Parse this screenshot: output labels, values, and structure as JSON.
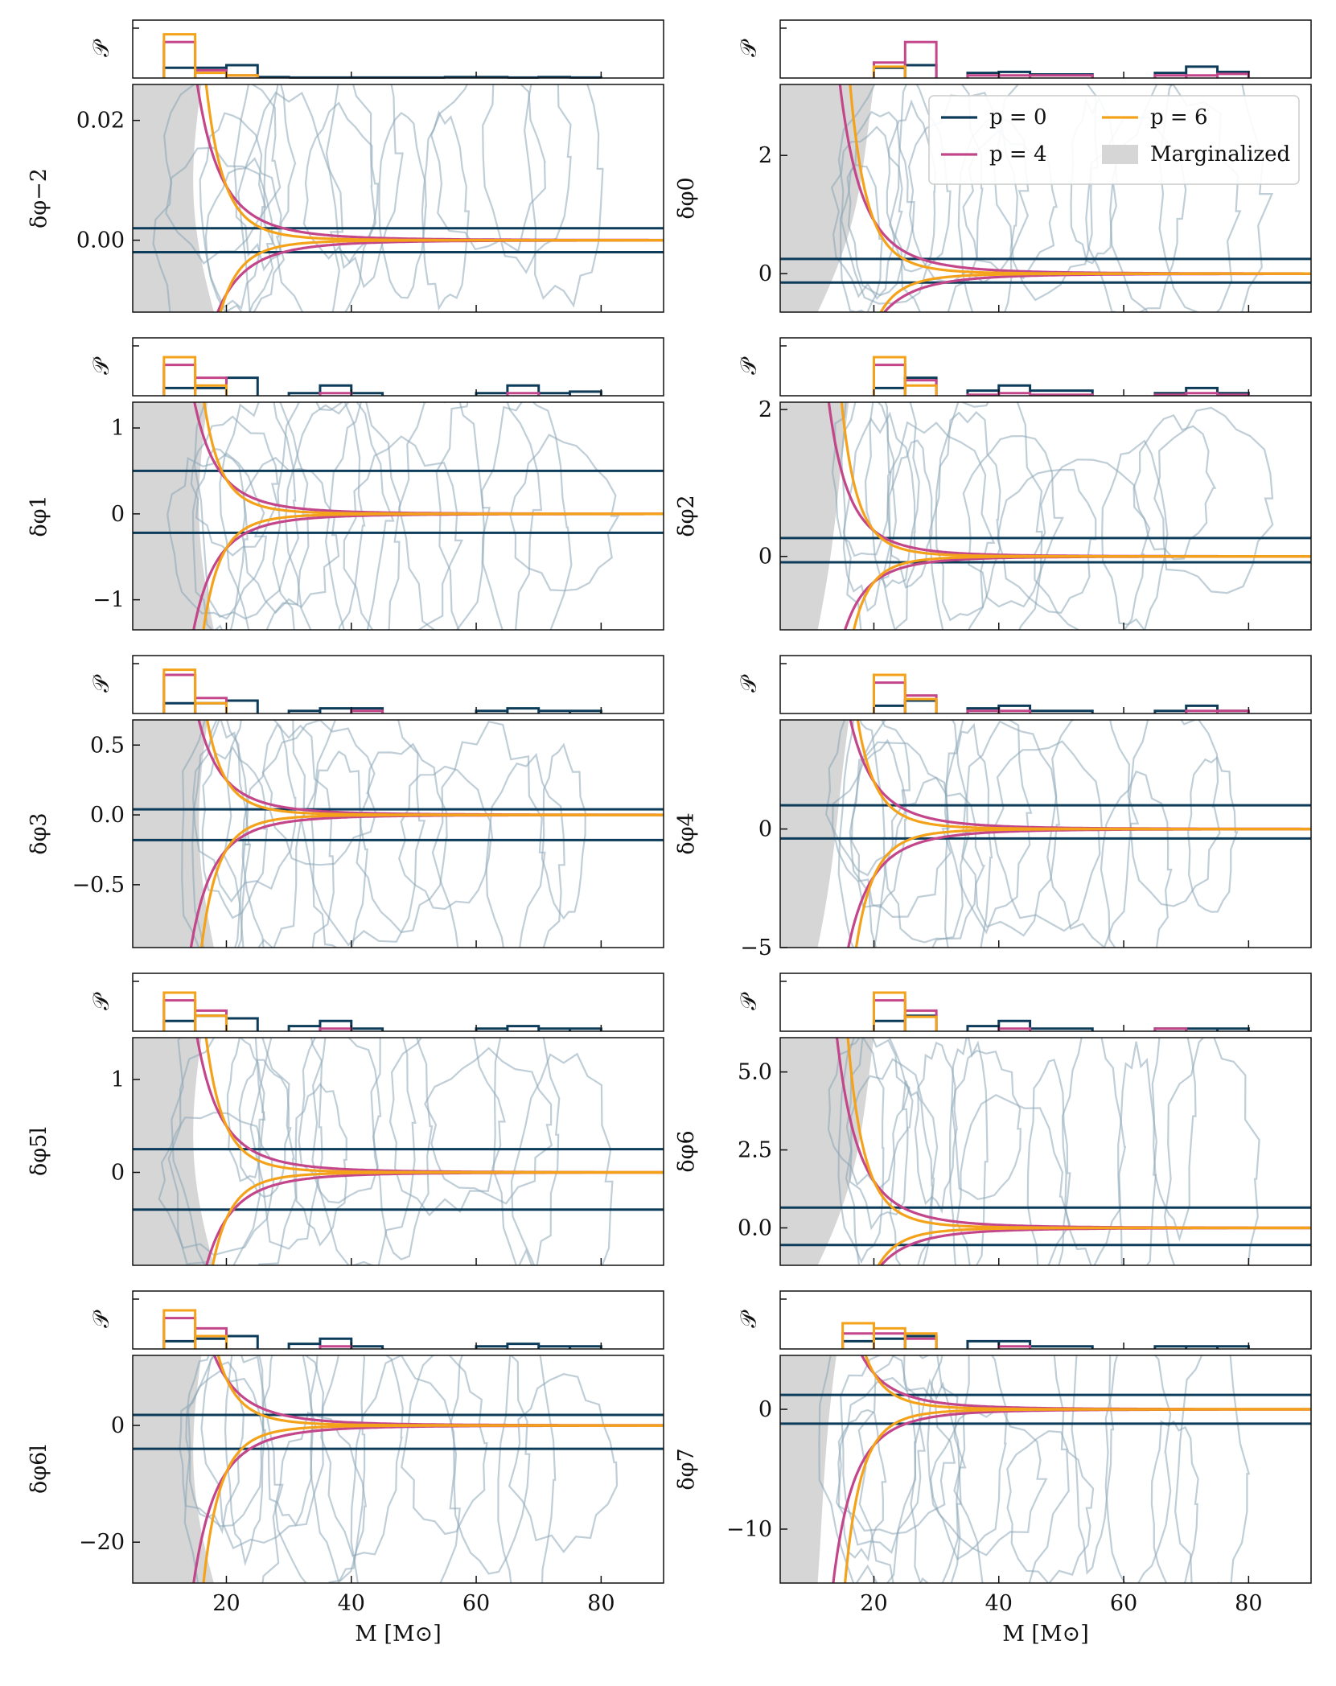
{
  "figure": {
    "xlabel": "M [M⊙]",
    "xticks": [
      20,
      40,
      60,
      80
    ],
    "xlim": [
      5,
      90
    ],
    "hist_ylabel": "𝒫",
    "colors": {
      "p0": "#0d3b5a",
      "p4": "#c4468a",
      "p6": "#f4a21a",
      "marginalized": "#d6d6d6",
      "contour": "#8aa6b6",
      "frame": "#111111"
    },
    "legend": {
      "entries": [
        {
          "label": "p = 0",
          "key": "p0",
          "kind": "line"
        },
        {
          "label": "p = 6",
          "key": "p6",
          "kind": "line"
        },
        {
          "label": "p = 4",
          "key": "p4",
          "kind": "line"
        },
        {
          "label": "Marginalized",
          "key": "marginalized",
          "kind": "patch"
        }
      ]
    }
  },
  "chart_data": [
    {
      "type": "line",
      "param": "δφ−2",
      "ylabel": "δφ−2",
      "ylim": [
        -0.012,
        0.026
      ],
      "yticks": [
        0.0,
        0.02
      ],
      "ytick_labels": [
        "0.00",
        "0.02"
      ],
      "p0_band": [
        -0.002,
        0.002
      ],
      "marg_edge": [
        12,
        14
      ],
      "curve_scale": 0.009,
      "curve_shift": 0,
      "hist": {
        "p0": [
          0.2,
          0.2,
          0.25,
          0.02,
          0.01,
          0.01,
          0.01,
          0.01,
          0.02,
          0.02,
          0.01,
          0.02,
          0.01
        ],
        "p4": [
          0.7,
          0.15,
          0.05,
          0,
          0,
          0,
          0,
          0,
          0,
          0,
          0,
          0,
          0
        ],
        "p6": [
          0.85,
          0.1,
          0.05,
          0,
          0,
          0,
          0,
          0,
          0,
          0,
          0,
          0,
          0
        ]
      }
    },
    {
      "type": "line",
      "param": "δφ0",
      "ylabel": "δφ0",
      "ylim": [
        -0.65,
        3.2
      ],
      "yticks": [
        0,
        2
      ],
      "ytick_labels": [
        "0",
        "2"
      ],
      "p0_band": [
        -0.15,
        0.25
      ],
      "marg_edge": [
        5,
        18
      ],
      "curve_scale": 0.9,
      "curve_shift": 0,
      "legend": true,
      "hist": {
        "p0": [
          0.0,
          0.0,
          0.2,
          0.25,
          0.0,
          0.1,
          0.12,
          0.07,
          0.0,
          0.0,
          0.1,
          0.22,
          0.12
        ],
        "p4": [
          0.0,
          0.0,
          0.3,
          0.7,
          0.0,
          0.05,
          0.05,
          0.05,
          0.0,
          0.0,
          0.05,
          0.05,
          0.08
        ],
        "p6": [
          0.0,
          0.0,
          0.22,
          0.0,
          0.0,
          0.0,
          0.0,
          0.0,
          0.0,
          0.0,
          0.0,
          0.0,
          0.0
        ]
      }
    },
    {
      "type": "line",
      "param": "δφ1",
      "ylabel": "δφ1",
      "ylim": [
        -1.35,
        1.3
      ],
      "yticks": [
        -1,
        0,
        1
      ],
      "ytick_labels": [
        "−1",
        "0",
        "1"
      ],
      "p0_band": [
        -0.22,
        0.5
      ],
      "marg_edge": [
        12,
        15
      ],
      "curve_scale": 0.4,
      "curve_shift": 1,
      "hist": {
        "p0": [
          0.15,
          0.15,
          0.35,
          0.0,
          0.05,
          0.2,
          0.05,
          0.0,
          0.0,
          0.05,
          0.2,
          0.05,
          0.08
        ],
        "p4": [
          0.6,
          0.35,
          0.0,
          0.0,
          0.0,
          0.05,
          0.0,
          0.0,
          0.0,
          0.0,
          0.05,
          0.0,
          0.0
        ],
        "p6": [
          0.75,
          0.2,
          0.0,
          0.0,
          0.0,
          0.0,
          0.0,
          0.0,
          0.0,
          0.0,
          0.0,
          0.0,
          0.0
        ]
      }
    },
    {
      "type": "line",
      "param": "δφ2",
      "ylabel": "δφ2",
      "ylim": [
        -1.0,
        2.1
      ],
      "yticks": [
        0,
        2
      ],
      "ytick_labels": [
        "0",
        "2"
      ],
      "p0_band": [
        -0.08,
        0.25
      ],
      "marg_edge": [
        5,
        14
      ],
      "curve_scale": 0.35,
      "curve_shift": 0,
      "hist": {
        "p0": [
          0.0,
          0.0,
          0.15,
          0.35,
          0.0,
          0.1,
          0.2,
          0.1,
          0.0,
          0.0,
          0.05,
          0.15,
          0.05
        ],
        "p4": [
          0.0,
          0.0,
          0.6,
          0.3,
          0.0,
          0.02,
          0.05,
          0.02,
          0.0,
          0.0,
          0.02,
          0.05,
          0.02
        ],
        "p6": [
          0.0,
          0.0,
          0.75,
          0.2,
          0.0,
          0.0,
          0.0,
          0.0,
          0.0,
          0.0,
          0.0,
          0.0,
          0.0
        ]
      }
    },
    {
      "type": "line",
      "param": "δφ3",
      "ylabel": "δφ3",
      "ylim": [
        -0.95,
        0.68
      ],
      "yticks": [
        -0.5,
        0.0,
        0.5
      ],
      "ytick_labels": [
        "−0.5",
        "0.0",
        "0.5"
      ],
      "p0_band": [
        -0.18,
        0.04
      ],
      "marg_edge": [
        12,
        15
      ],
      "curve_scale": 0.25,
      "curve_shift": 0,
      "hist": {
        "p0": [
          0.2,
          0.2,
          0.25,
          0.0,
          0.05,
          0.1,
          0.1,
          0.0,
          0.0,
          0.05,
          0.1,
          0.05,
          0.05
        ],
        "p4": [
          0.75,
          0.3,
          0.0,
          0.0,
          0.0,
          0.0,
          0.05,
          0.0,
          0.0,
          0.0,
          0.0,
          0.0,
          0.0
        ],
        "p6": [
          0.85,
          0.2,
          0.0,
          0.0,
          0.0,
          0.0,
          0.0,
          0.0,
          0.0,
          0.0,
          0.0,
          0.0,
          0.0
        ]
      }
    },
    {
      "type": "line",
      "param": "δφ4",
      "ylabel": "δφ4",
      "ylim": [
        -5.0,
        4.6
      ],
      "yticks": [
        -5,
        0
      ],
      "ytick_labels": [
        "−5",
        "0"
      ],
      "p0_band": [
        -0.4,
        1.0
      ],
      "marg_edge": [
        5,
        14
      ],
      "curve_scale": 2.0,
      "curve_shift": 0,
      "hist": {
        "p0": [
          0.0,
          0.0,
          0.15,
          0.25,
          0.0,
          0.1,
          0.15,
          0.05,
          0.0,
          0.0,
          0.05,
          0.15,
          0.05
        ],
        "p4": [
          0.0,
          0.0,
          0.6,
          0.35,
          0.0,
          0.05,
          0.05,
          0.0,
          0.0,
          0.0,
          0.0,
          0.05,
          0.05
        ],
        "p6": [
          0.0,
          0.0,
          0.75,
          0.28,
          0.0,
          0.0,
          0.0,
          0.0,
          0.0,
          0.0,
          0.0,
          0.0,
          0.0
        ]
      }
    },
    {
      "type": "line",
      "param": "δφ5l",
      "ylabel": "δφ5l",
      "ylim": [
        -1.0,
        1.45
      ],
      "yticks": [
        0,
        1
      ],
      "ytick_labels": [
        "0",
        "1"
      ],
      "p0_band": [
        -0.4,
        0.25
      ],
      "marg_edge": [
        12,
        14
      ],
      "curve_scale": 0.5,
      "curve_shift": 0,
      "hist": {
        "p0": [
          0.2,
          0.3,
          0.25,
          0.0,
          0.1,
          0.2,
          0.05,
          0.0,
          0.0,
          0.05,
          0.1,
          0.05,
          0.05
        ],
        "p4": [
          0.6,
          0.4,
          0.0,
          0.0,
          0.0,
          0.05,
          0.0,
          0.0,
          0.0,
          0.0,
          0.0,
          0.0,
          0.0
        ],
        "p6": [
          0.75,
          0.3,
          0.0,
          0.0,
          0.0,
          0.0,
          0.0,
          0.0,
          0.0,
          0.0,
          0.0,
          0.0,
          0.0
        ]
      }
    },
    {
      "type": "line",
      "param": "δφ6",
      "ylabel": "δφ6",
      "ylim": [
        -1.2,
        6.1
      ],
      "yticks": [
        0.0,
        2.5,
        5.0
      ],
      "ytick_labels": [
        "0.0",
        "2.5",
        "5.0"
      ],
      "p0_band": [
        -0.55,
        0.65
      ],
      "marg_edge": [
        5,
        18
      ],
      "curve_scale": 1.5,
      "curve_shift": 0,
      "hist": {
        "p0": [
          0.0,
          0.0,
          0.2,
          0.3,
          0.0,
          0.1,
          0.2,
          0.05,
          0.0,
          0.0,
          0.05,
          0.05,
          0.05
        ],
        "p4": [
          0.0,
          0.0,
          0.6,
          0.4,
          0.0,
          0.0,
          0.05,
          0.0,
          0.0,
          0.0,
          0.05,
          0.0,
          0.0
        ],
        "p6": [
          0.0,
          0.0,
          0.75,
          0.28,
          0.0,
          0.0,
          0.0,
          0.0,
          0.0,
          0.0,
          0.0,
          0.0,
          0.0
        ]
      }
    },
    {
      "type": "line",
      "param": "δφ6l",
      "ylabel": "δφ6l",
      "ylim": [
        -27,
        12
      ],
      "yticks": [
        -20,
        0
      ],
      "ytick_labels": [
        "−20",
        "0"
      ],
      "p0_band": [
        -4.0,
        1.8
      ],
      "marg_edge": [
        12,
        14
      ],
      "curve_scale": 8.0,
      "curve_shift": 0,
      "hist": {
        "p0": [
          0.15,
          0.2,
          0.25,
          0.0,
          0.1,
          0.2,
          0.05,
          0.0,
          0.0,
          0.05,
          0.1,
          0.05,
          0.05
        ],
        "p4": [
          0.6,
          0.4,
          0.0,
          0.0,
          0.0,
          0.05,
          0.0,
          0.0,
          0.0,
          0.0,
          0.0,
          0.0,
          0.0
        ],
        "p6": [
          0.75,
          0.25,
          0.0,
          0.0,
          0.0,
          0.0,
          0.0,
          0.0,
          0.0,
          0.0,
          0.0,
          0.0,
          0.0
        ]
      }
    },
    {
      "type": "line",
      "param": "δφ7",
      "ylabel": "δφ7",
      "ylim": [
        -14.5,
        4.5
      ],
      "yticks": [
        -10,
        0
      ],
      "ytick_labels": [
        "−10",
        "0"
      ],
      "p0_band": [
        -1.2,
        1.2
      ],
      "marg_edge": [
        5,
        12
      ],
      "curve_scale": 3.0,
      "curve_shift": 0,
      "hist": {
        "p0": [
          0.0,
          0.15,
          0.2,
          0.25,
          0.0,
          0.15,
          0.15,
          0.05,
          0.0,
          0.0,
          0.05,
          0.05,
          0.05
        ],
        "p4": [
          0.0,
          0.3,
          0.3,
          0.2,
          0.0,
          0.0,
          0.05,
          0.0,
          0.0,
          0.0,
          0.0,
          0.0,
          0.0
        ],
        "p6": [
          0.0,
          0.5,
          0.4,
          0.3,
          0.0,
          0.0,
          0.0,
          0.0,
          0.0,
          0.0,
          0.0,
          0.0,
          0.0
        ]
      }
    }
  ]
}
